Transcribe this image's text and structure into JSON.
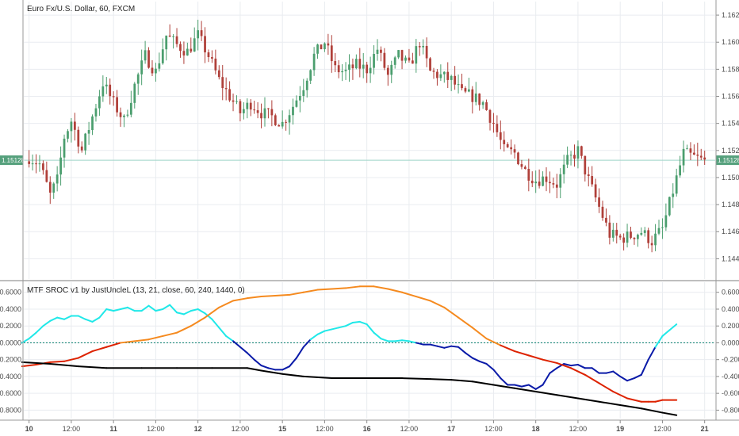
{
  "chart_data": [
    {
      "type": "candlestick",
      "title": "Euro Fx/U.S. Dollar, 60, FXCM",
      "ylim": [
        1.1425,
        1.163
      ],
      "last_price": 1.15128,
      "last_price_label": "1.15128",
      "y_ticks": [
        {
          "v": 1.162,
          "label": "1.16200"
        },
        {
          "v": 1.16,
          "label": "1.16000"
        },
        {
          "v": 1.158,
          "label": "1.15800"
        },
        {
          "v": 1.156,
          "label": "1.15600"
        },
        {
          "v": 1.154,
          "label": "1.15400"
        },
        {
          "v": 1.152,
          "label": "1.15200"
        },
        {
          "v": 1.15,
          "label": "1.15000"
        },
        {
          "v": 1.148,
          "label": "1.14800"
        },
        {
          "v": 1.146,
          "label": "1.14600"
        },
        {
          "v": 1.144,
          "label": "1.14400"
        }
      ],
      "x_ticks": [
        {
          "label": "10",
          "x": 0
        },
        {
          "label": "12:00",
          "x": 12
        },
        {
          "label": "11",
          "x": 24
        },
        {
          "label": "12:00",
          "x": 36
        },
        {
          "label": "12",
          "x": 48
        },
        {
          "label": "12:00",
          "x": 60
        },
        {
          "label": "15",
          "x": 72
        },
        {
          "label": "12:00",
          "x": 84
        },
        {
          "label": "16",
          "x": 96
        },
        {
          "label": "12:00",
          "x": 108
        },
        {
          "label": "17",
          "x": 120
        },
        {
          "label": "12:00",
          "x": 132
        },
        {
          "label": "18",
          "x": 144
        },
        {
          "label": "12:00",
          "x": 156
        },
        {
          "label": "19",
          "x": 168
        },
        {
          "label": "12:00",
          "x": 180
        },
        {
          "label": "21",
          "x": 192
        }
      ],
      "x_range": [
        -1.5,
        195
      ],
      "close_knots": [
        [
          0,
          1.1515
        ],
        [
          3,
          1.151
        ],
        [
          6,
          1.1487
        ],
        [
          8,
          1.1498
        ],
        [
          10,
          1.153
        ],
        [
          12,
          1.1542
        ],
        [
          15,
          1.152
        ],
        [
          18,
          1.1545
        ],
        [
          21,
          1.157
        ],
        [
          24,
          1.1555
        ],
        [
          27,
          1.1542
        ],
        [
          30,
          1.1568
        ],
        [
          33,
          1.159
        ],
        [
          36,
          1.1578
        ],
        [
          39,
          1.1605
        ],
        [
          42,
          1.1598
        ],
        [
          45,
          1.1593
        ],
        [
          48,
          1.1605
        ],
        [
          51,
          1.159
        ],
        [
          54,
          1.1572
        ],
        [
          57,
          1.156
        ],
        [
          60,
          1.1548
        ],
        [
          63,
          1.1555
        ],
        [
          66,
          1.1548
        ],
        [
          69,
          1.1545
        ],
        [
          72,
          1.154
        ],
        [
          75,
          1.1553
        ],
        [
          78,
          1.1568
        ],
        [
          81,
          1.159
        ],
        [
          84,
          1.16
        ],
        [
          87,
          1.158
        ],
        [
          90,
          1.1578
        ],
        [
          93,
          1.1583
        ],
        [
          96,
          1.158
        ],
        [
          99,
          1.1595
        ],
        [
          102,
          1.1575
        ],
        [
          105,
          1.159
        ],
        [
          108,
          1.1582
        ],
        [
          111,
          1.16
        ],
        [
          114,
          1.1578
        ],
        [
          117,
          1.1575
        ],
        [
          120,
          1.1572
        ],
        [
          123,
          1.1562
        ],
        [
          126,
          1.156
        ],
        [
          129,
          1.1555
        ],
        [
          132,
          1.154
        ],
        [
          135,
          1.152
        ],
        [
          138,
          1.1518
        ],
        [
          141,
          1.1505
        ],
        [
          144,
          1.1498
        ],
        [
          147,
          1.15
        ],
        [
          150,
          1.1495
        ],
        [
          153,
          1.1512
        ],
        [
          156,
          1.152
        ],
        [
          159,
          1.1498
        ],
        [
          162,
          1.1478
        ],
        [
          165,
          1.1458
        ],
        [
          168,
          1.1455
        ],
        [
          171,
          1.1457
        ],
        [
          174,
          1.146
        ],
        [
          177,
          1.1453
        ],
        [
          180,
          1.1462
        ],
        [
          183,
          1.149
        ],
        [
          186,
          1.1518
        ],
        [
          189,
          1.1515
        ],
        [
          192,
          1.1512
        ]
      ]
    },
    {
      "type": "line",
      "title": "MTF SROC v1 by JustUncleL (13, 21, close, 60, 240, 1440, 0)",
      "ylim": [
        -0.9,
        0.72
      ],
      "y_ticks": [
        {
          "v": 0.6,
          "label": "0.6000"
        },
        {
          "v": 0.4,
          "label": "0.4000"
        },
        {
          "v": 0.2,
          "label": "0.2000"
        },
        {
          "v": 0.0,
          "label": "0.0000"
        },
        {
          "v": -0.2,
          "label": "-0.2000"
        },
        {
          "v": -0.4,
          "label": "-0.4000"
        },
        {
          "v": -0.6,
          "label": "-0.6000"
        },
        {
          "v": -0.8,
          "label": "-0.8000"
        }
      ],
      "zero_line": 0,
      "series": [
        {
          "key": "fast",
          "color_pos": "#20e8e8",
          "color_neg": "#0a1aa8",
          "points": [
            [
              -2,
              0.0
            ],
            [
              0,
              0.05
            ],
            [
              2,
              0.12
            ],
            [
              4,
              0.2
            ],
            [
              6,
              0.26
            ],
            [
              8,
              0.3
            ],
            [
              10,
              0.28
            ],
            [
              12,
              0.32
            ],
            [
              14,
              0.32
            ],
            [
              16,
              0.28
            ],
            [
              18,
              0.25
            ],
            [
              20,
              0.3
            ],
            [
              22,
              0.4
            ],
            [
              24,
              0.38
            ],
            [
              26,
              0.4
            ],
            [
              28,
              0.42
            ],
            [
              30,
              0.38
            ],
            [
              32,
              0.38
            ],
            [
              34,
              0.44
            ],
            [
              36,
              0.38
            ],
            [
              38,
              0.4
            ],
            [
              40,
              0.45
            ],
            [
              42,
              0.36
            ],
            [
              44,
              0.34
            ],
            [
              46,
              0.38
            ],
            [
              48,
              0.4
            ],
            [
              50,
              0.35
            ],
            [
              52,
              0.28
            ],
            [
              54,
              0.18
            ],
            [
              56,
              0.08
            ],
            [
              58,
              0.02
            ],
            [
              60,
              -0.05
            ],
            [
              62,
              -0.12
            ],
            [
              64,
              -0.2
            ],
            [
              66,
              -0.27
            ],
            [
              68,
              -0.3
            ],
            [
              70,
              -0.32
            ],
            [
              72,
              -0.32
            ],
            [
              74,
              -0.28
            ],
            [
              76,
              -0.18
            ],
            [
              78,
              -0.05
            ],
            [
              80,
              0.04
            ],
            [
              82,
              0.1
            ],
            [
              84,
              0.14
            ],
            [
              86,
              0.16
            ],
            [
              88,
              0.18
            ],
            [
              90,
              0.2
            ],
            [
              92,
              0.24
            ],
            [
              94,
              0.25
            ],
            [
              96,
              0.22
            ],
            [
              98,
              0.12
            ],
            [
              100,
              0.05
            ],
            [
              102,
              0.02
            ],
            [
              104,
              0.02
            ],
            [
              106,
              0.03
            ],
            [
              108,
              0.02
            ],
            [
              110,
              0.0
            ],
            [
              112,
              -0.02
            ],
            [
              114,
              -0.02
            ],
            [
              116,
              -0.04
            ],
            [
              118,
              -0.06
            ],
            [
              120,
              -0.04
            ],
            [
              122,
              -0.05
            ],
            [
              124,
              -0.12
            ],
            [
              126,
              -0.18
            ],
            [
              128,
              -0.22
            ],
            [
              130,
              -0.25
            ],
            [
              132,
              -0.32
            ],
            [
              134,
              -0.42
            ],
            [
              136,
              -0.5
            ],
            [
              138,
              -0.5
            ],
            [
              140,
              -0.52
            ],
            [
              142,
              -0.5
            ],
            [
              144,
              -0.55
            ],
            [
              146,
              -0.5
            ],
            [
              148,
              -0.36
            ],
            [
              150,
              -0.3
            ],
            [
              152,
              -0.25
            ],
            [
              154,
              -0.27
            ],
            [
              156,
              -0.26
            ],
            [
              158,
              -0.3
            ],
            [
              160,
              -0.3
            ],
            [
              162,
              -0.36
            ],
            [
              164,
              -0.36
            ],
            [
              166,
              -0.34
            ],
            [
              168,
              -0.4
            ],
            [
              170,
              -0.45
            ],
            [
              172,
              -0.42
            ],
            [
              174,
              -0.38
            ],
            [
              176,
              -0.2
            ],
            [
              178,
              -0.05
            ],
            [
              180,
              0.08
            ],
            [
              182,
              0.15
            ],
            [
              184,
              0.22
            ]
          ]
        },
        {
          "key": "medium",
          "color_pos": "#f58a1f",
          "color_neg": "#dd2200",
          "points": [
            [
              -2,
              -0.28
            ],
            [
              2,
              -0.26
            ],
            [
              6,
              -0.23
            ],
            [
              10,
              -0.22
            ],
            [
              14,
              -0.18
            ],
            [
              18,
              -0.1
            ],
            [
              22,
              -0.05
            ],
            [
              26,
              0.0
            ],
            [
              30,
              0.02
            ],
            [
              34,
              0.04
            ],
            [
              38,
              0.08
            ],
            [
              42,
              0.12
            ],
            [
              46,
              0.2
            ],
            [
              50,
              0.3
            ],
            [
              54,
              0.42
            ],
            [
              58,
              0.5
            ],
            [
              62,
              0.53
            ],
            [
              66,
              0.55
            ],
            [
              70,
              0.56
            ],
            [
              74,
              0.57
            ],
            [
              78,
              0.6
            ],
            [
              82,
              0.63
            ],
            [
              86,
              0.64
            ],
            [
              90,
              0.65
            ],
            [
              94,
              0.67
            ],
            [
              98,
              0.67
            ],
            [
              102,
              0.64
            ],
            [
              106,
              0.6
            ],
            [
              110,
              0.55
            ],
            [
              114,
              0.5
            ],
            [
              118,
              0.42
            ],
            [
              122,
              0.3
            ],
            [
              126,
              0.18
            ],
            [
              130,
              0.05
            ],
            [
              134,
              -0.03
            ],
            [
              138,
              -0.1
            ],
            [
              142,
              -0.15
            ],
            [
              146,
              -0.2
            ],
            [
              150,
              -0.24
            ],
            [
              154,
              -0.3
            ],
            [
              158,
              -0.38
            ],
            [
              162,
              -0.48
            ],
            [
              166,
              -0.58
            ],
            [
              170,
              -0.66
            ],
            [
              174,
              -0.7
            ],
            [
              176,
              -0.7
            ],
            [
              178,
              -0.7
            ],
            [
              180,
              -0.68
            ],
            [
              184,
              -0.68
            ]
          ]
        },
        {
          "key": "slow",
          "color_pos": "#000000",
          "color_neg": "#000000",
          "points": [
            [
              -2,
              -0.23
            ],
            [
              6,
              -0.25
            ],
            [
              14,
              -0.28
            ],
            [
              22,
              -0.3
            ],
            [
              32,
              -0.3
            ],
            [
              42,
              -0.3
            ],
            [
              52,
              -0.3
            ],
            [
              62,
              -0.3
            ],
            [
              66,
              -0.33
            ],
            [
              72,
              -0.37
            ],
            [
              78,
              -0.4
            ],
            [
              86,
              -0.42
            ],
            [
              96,
              -0.42
            ],
            [
              106,
              -0.42
            ],
            [
              114,
              -0.43
            ],
            [
              120,
              -0.44
            ],
            [
              126,
              -0.46
            ],
            [
              132,
              -0.5
            ],
            [
              138,
              -0.54
            ],
            [
              144,
              -0.58
            ],
            [
              150,
              -0.62
            ],
            [
              156,
              -0.66
            ],
            [
              162,
              -0.7
            ],
            [
              168,
              -0.74
            ],
            [
              174,
              -0.78
            ],
            [
              180,
              -0.83
            ],
            [
              184,
              -0.86
            ]
          ]
        }
      ]
    }
  ],
  "colors": {
    "bull": "#4b9e6e",
    "bear": "#b0403a",
    "price_line": "#9ed3c6",
    "price_tag": "#55a07c",
    "zero_line": "#1a8a7a",
    "grid": "#e9ecf0",
    "axis": "#8a8a8a"
  }
}
